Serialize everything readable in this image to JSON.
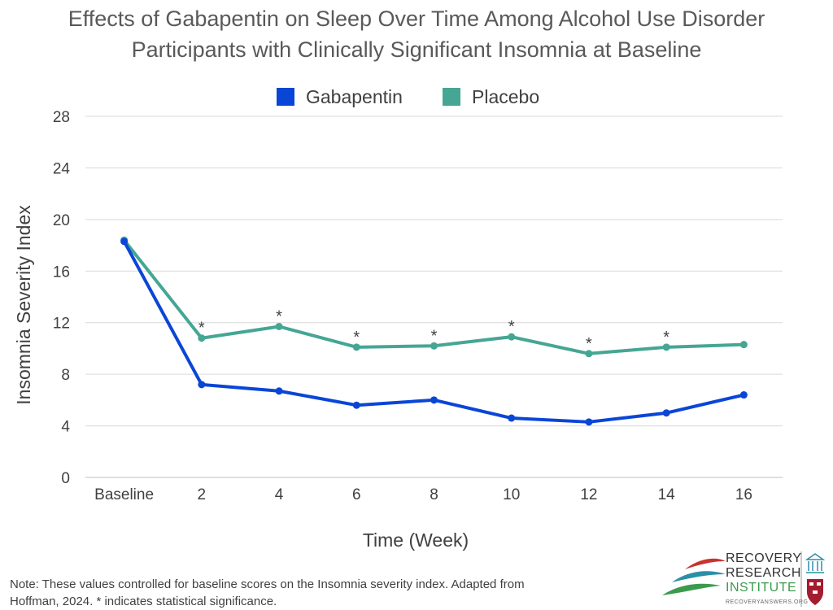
{
  "chart_data": {
    "type": "line",
    "title": [
      "Effects of Gabapentin on Sleep Over Time Among Alcohol Use Disorder",
      "Participants with Clinically Significant Insomnia at Baseline"
    ],
    "xlabel": "Time (Week)",
    "ylabel": "Insomnia Severity Index",
    "categories": [
      "Baseline",
      "2",
      "4",
      "6",
      "8",
      "10",
      "12",
      "14",
      "16"
    ],
    "ylim": [
      0,
      28
    ],
    "yticks": [
      "0",
      "4",
      "8",
      "12",
      "16",
      "20",
      "24",
      "28"
    ],
    "grid": true,
    "legend_position": "top-center",
    "series": [
      {
        "name": "Gabapentin",
        "color": "#0a46d6",
        "values": [
          18.3,
          7.2,
          6.7,
          5.6,
          6.0,
          4.6,
          4.3,
          5.0,
          6.4
        ]
      },
      {
        "name": "Placebo",
        "color": "#45a694",
        "values": [
          18.4,
          10.8,
          11.7,
          10.1,
          10.2,
          10.9,
          9.6,
          10.1,
          10.3
        ]
      }
    ],
    "significance_marker": "*",
    "significant_categories": [
      "2",
      "4",
      "6",
      "8",
      "10",
      "12",
      "14"
    ]
  },
  "footnote": [
    "Note: These values controlled for baseline scores on the Insomnia severity index. Adapted from",
    "Hoffman, 2024. * indicates statistical significance."
  ],
  "logo": {
    "words": [
      "RECOVERY",
      "RESEARCH",
      "INSTITUTE"
    ],
    "url": "RECOVERYANSWERS.ORG",
    "icon_names": [
      "leaf-swoosh-icon",
      "building-columns-icon",
      "shield-crest-icon"
    ]
  }
}
